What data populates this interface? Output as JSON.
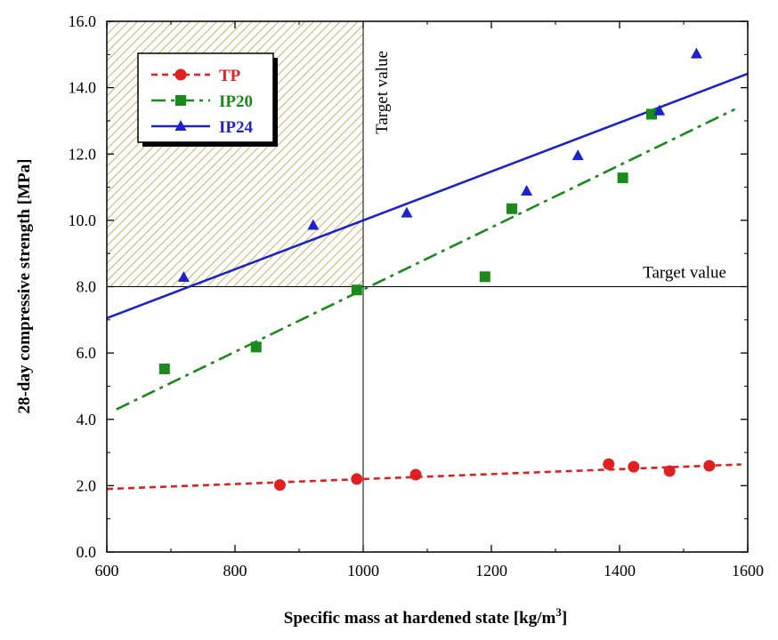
{
  "chart_data": {
    "type": "scatter",
    "xlabel": "Specific mass at hardened state [kg/m",
    "xlabel_sup": "3",
    "xlabel_end": "]",
    "ylabel": "28-day compressive strength [MPa]",
    "xlim": [
      600,
      1600
    ],
    "ylim": [
      0,
      16
    ],
    "xticks": [
      600,
      800,
      1000,
      1200,
      1400,
      1600
    ],
    "yticks": [
      "0.0",
      "2.0",
      "4.0",
      "6.0",
      "8.0",
      "10.0",
      "12.0",
      "14.0",
      "16.0"
    ],
    "grid": false,
    "legend_position": "top-left",
    "target_x": 1000,
    "target_y": 8,
    "annotations": {
      "target_vertical": "Target value",
      "target_horizontal": "Target value"
    },
    "series": [
      {
        "name": "TP",
        "color": "#e02020",
        "marker": "circle",
        "line_style": "dashed",
        "points": [
          {
            "x": 870,
            "y": 2.02
          },
          {
            "x": 990,
            "y": 2.2
          },
          {
            "x": 1082,
            "y": 2.33
          },
          {
            "x": 1383,
            "y": 2.65
          },
          {
            "x": 1422,
            "y": 2.57
          },
          {
            "x": 1478,
            "y": 2.44
          },
          {
            "x": 1540,
            "y": 2.6
          }
        ],
        "fit": {
          "x": [
            600,
            1590
          ],
          "y": [
            1.9,
            2.64
          ]
        }
      },
      {
        "name": "IP20",
        "color": "#1a8a1a",
        "marker": "square",
        "line_style": "dashdot",
        "points": [
          {
            "x": 690,
            "y": 5.52
          },
          {
            "x": 833,
            "y": 6.18
          },
          {
            "x": 990,
            "y": 7.9
          },
          {
            "x": 1190,
            "y": 8.3
          },
          {
            "x": 1232,
            "y": 10.35
          },
          {
            "x": 1405,
            "y": 11.28
          },
          {
            "x": 1450,
            "y": 13.2
          }
        ],
        "fit": {
          "x": [
            615,
            1580
          ],
          "y": [
            4.3,
            13.35
          ]
        }
      },
      {
        "name": "IP24",
        "color": "#1a24c8",
        "marker": "triangle",
        "line_style": "solid",
        "points": [
          {
            "x": 720,
            "y": 8.28
          },
          {
            "x": 922,
            "y": 9.85
          },
          {
            "x": 1068,
            "y": 10.22
          },
          {
            "x": 1255,
            "y": 10.88
          },
          {
            "x": 1335,
            "y": 11.95
          },
          {
            "x": 1462,
            "y": 13.3
          },
          {
            "x": 1520,
            "y": 15.02
          }
        ],
        "fit": {
          "x": [
            600,
            1600
          ],
          "y": [
            7.05,
            14.42
          ]
        }
      }
    ]
  }
}
